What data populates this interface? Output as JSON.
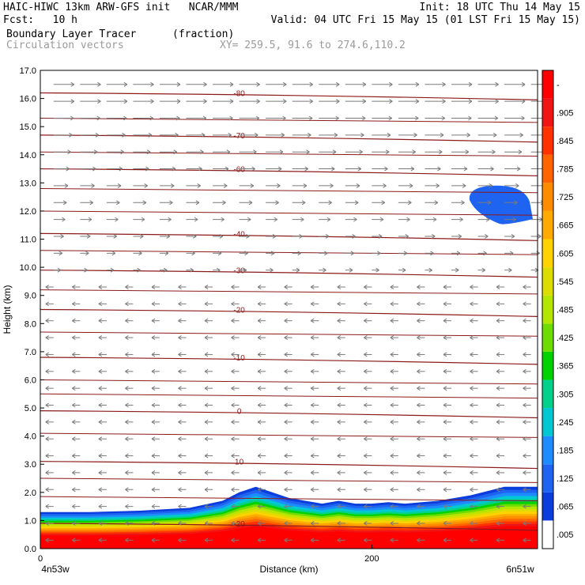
{
  "header": {
    "line1_left": "HAIC-HIWC 13km ARW-GFS init   NCAR/MMM",
    "line1_right": "Init: 18 UTC Thu 14 May 15",
    "line2_left": "Fcst:   10 h",
    "line2_right": "Valid: 04 UTC Fri 15 May 15 (01 LST Fri 15 May 15)",
    "line3_field": "Boundary Layer Tracer",
    "line3_units": "(fraction)",
    "line4_field": "Circulation vectors",
    "line4_xy": "XY= 259.5, 91.6 to 274.6,110.2"
  },
  "chart_data": {
    "type": "heatmap",
    "title": "Boundary Layer Tracer",
    "xlabel": "Distance (km)",
    "ylabel": "Height (km)",
    "xlim": [
      0,
      300
    ],
    "ylim": [
      0,
      17
    ],
    "x_ticks": [
      {
        "value": 0,
        "label": "0"
      },
      {
        "value": 200,
        "label": "200"
      }
    ],
    "x_endpoints": {
      "left": "4n53w",
      "right": "6n51w"
    },
    "y_ticks": [
      "0.0",
      "1.0",
      "2.0",
      "3.0",
      "4.0",
      "5.0",
      "6.0",
      "7.0",
      "8.0",
      "9.0",
      "10.0",
      "11.0",
      "12.0",
      "13.0",
      "14.0",
      "15.0",
      "16.0",
      "17.0"
    ],
    "colorbar": {
      "ticks": [
        ".005",
        ".065",
        ".125",
        ".185",
        ".245",
        ".305",
        ".365",
        ".425",
        ".485",
        ".545",
        ".605",
        ".665",
        ".725",
        ".785",
        ".845",
        ".905",
        "-"
      ],
      "colors": [
        "#ffffff",
        "#0b3cdc",
        "#1e64f0",
        "#1e8cff",
        "#00c8d2",
        "#00d28c",
        "#00d200",
        "#6edc00",
        "#b4e600",
        "#dcdc00",
        "#ffd200",
        "#ffaa00",
        "#ff8c00",
        "#ff6400",
        "#ff3200",
        "#f01414",
        "#ff0000"
      ]
    },
    "temperature_contours_C": [
      {
        "label": "-80",
        "z": 16.2
      },
      {
        "label": "-70",
        "z": 14.7
      },
      {
        "label": "-60",
        "z": 13.5
      },
      {
        "label": "-40",
        "z": 11.2
      },
      {
        "label": "-30",
        "z": 9.9
      },
      {
        "label": "-20",
        "z": 8.5
      },
      {
        "label": "-10",
        "z": 6.8
      },
      {
        "label": "0",
        "z": 4.9
      },
      {
        "label": "10",
        "z": 3.1
      },
      {
        "label": "-20",
        "z": 0.9
      }
    ],
    "pbl_top_profile": {
      "x_km": [
        0,
        30,
        60,
        90,
        110,
        120,
        130,
        150,
        170,
        180,
        190,
        200,
        210,
        220,
        240,
        260,
        280,
        290,
        300
      ],
      "z_km": [
        1.3,
        1.3,
        1.35,
        1.45,
        1.7,
        2.0,
        2.2,
        1.8,
        1.6,
        1.7,
        1.6,
        1.6,
        1.65,
        1.6,
        1.7,
        1.9,
        2.2,
        2.2,
        2.2
      ]
    },
    "upper_blob": {
      "x_range_km": [
        258,
        300
      ],
      "z_range_km": [
        11.6,
        12.9
      ],
      "value": 0.065
    },
    "wind_vectors": {
      "upper_direction": "east",
      "lower_direction": "west",
      "reversal_z_km": 9.5
    }
  }
}
